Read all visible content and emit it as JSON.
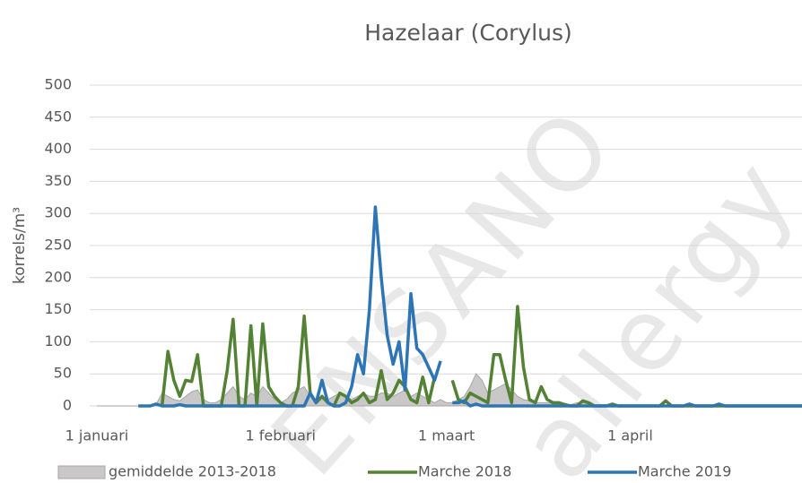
{
  "chart_data": {
    "type": "line",
    "title": "Hazelaar (Corylus)",
    "ylabel": "korrels/m³",
    "annotations": [
      "ENSANO",
      "allergy"
    ],
    "x": [
      0,
      1,
      2,
      3,
      4,
      5,
      6,
      7,
      8,
      9,
      10,
      11,
      12,
      13,
      14,
      15,
      16,
      17,
      18,
      19,
      20,
      21,
      22,
      23,
      24,
      25,
      26,
      27,
      28,
      29,
      30,
      31,
      32,
      33,
      34,
      35,
      36,
      37,
      38,
      39,
      40,
      41,
      42,
      43,
      44,
      45,
      46,
      47,
      48,
      49,
      50,
      51,
      52,
      53,
      54,
      55,
      56,
      57,
      58,
      59,
      60,
      61,
      62,
      63,
      64,
      65,
      66,
      67,
      68,
      69,
      70,
      71,
      72,
      73,
      74,
      75,
      76,
      77,
      78,
      79,
      80,
      81,
      82,
      83,
      84,
      85,
      86,
      87,
      88,
      89,
      90,
      91,
      92,
      93,
      94,
      95,
      96,
      97,
      98,
      99,
      100,
      101,
      102,
      103,
      104,
      105,
      106,
      107,
      108,
      109,
      110,
      111,
      112,
      113,
      114,
      115,
      116,
      117,
      118,
      119
    ],
    "xlim": [
      -1.2,
      119
    ],
    "xticks": [
      {
        "value": 0,
        "label": "1 januari"
      },
      {
        "value": 31,
        "label": "1 februari"
      },
      {
        "value": 59,
        "label": "1 maart"
      },
      {
        "value": 90,
        "label": "1 april"
      }
    ],
    "ylim": [
      0,
      500
    ],
    "yticks": [
      0,
      50,
      100,
      150,
      200,
      250,
      300,
      350,
      400,
      450,
      500
    ],
    "grid": true,
    "legend": "bottom",
    "series": [
      {
        "name": "gemiddelde 2013-2018",
        "kind": "area",
        "color": "#c9c7c7",
        "edge": "#a6a6a6",
        "values": [
          0,
          0,
          0,
          0,
          0,
          0,
          0,
          0,
          0,
          0,
          2,
          20,
          15,
          10,
          8,
          15,
          22,
          25,
          10,
          5,
          5,
          10,
          20,
          30,
          15,
          10,
          20,
          15,
          30,
          20,
          10,
          5,
          10,
          20,
          25,
          30,
          15,
          10,
          10,
          10,
          15,
          20,
          15,
          10,
          15,
          20,
          15,
          15,
          20,
          20,
          15,
          20,
          25,
          15,
          20,
          15,
          10,
          5,
          10,
          5,
          5,
          10,
          15,
          30,
          50,
          40,
          20,
          25,
          30,
          35,
          25,
          15,
          10,
          8,
          5,
          5,
          5,
          3,
          3,
          2,
          2,
          5,
          5,
          3,
          2,
          2,
          2,
          1,
          1,
          1,
          0,
          0,
          0,
          0,
          0,
          0,
          0,
          0,
          0,
          0,
          0,
          0,
          0,
          0,
          0,
          0,
          0,
          0,
          0,
          0,
          0,
          0,
          0,
          0,
          0,
          0,
          0,
          0,
          0,
          0
        ]
      },
      {
        "name": "Marche 2018",
        "kind": "line",
        "color": "#548235",
        "values": [
          null,
          null,
          null,
          null,
          null,
          null,
          null,
          null,
          null,
          null,
          null,
          0,
          85,
          40,
          15,
          40,
          38,
          80,
          0,
          0,
          0,
          0,
          55,
          135,
          0,
          0,
          125,
          0,
          128,
          30,
          15,
          5,
          0,
          0,
          30,
          140,
          20,
          5,
          15,
          5,
          0,
          20,
          15,
          5,
          10,
          20,
          5,
          10,
          55,
          10,
          20,
          40,
          30,
          10,
          5,
          45,
          5,
          45,
          null,
          null,
          40,
          10,
          5,
          20,
          15,
          10,
          5,
          80,
          80,
          40,
          5,
          155,
          60,
          10,
          5,
          30,
          10,
          5,
          5,
          2,
          0,
          0,
          8,
          5,
          0,
          0,
          0,
          3,
          0,
          0,
          0,
          0,
          0,
          0,
          0,
          0,
          8,
          0,
          0,
          0,
          0,
          0,
          0,
          0,
          0,
          0,
          0,
          0,
          0,
          0,
          0,
          0,
          0,
          0,
          0,
          0,
          0,
          0,
          0,
          0
        ]
      },
      {
        "name": "Marche 2019",
        "kind": "line",
        "color": "#2e75b6",
        "values": [
          null,
          null,
          null,
          null,
          null,
          null,
          null,
          0,
          0,
          0,
          3,
          0,
          0,
          0,
          2,
          0,
          0,
          0,
          0,
          0,
          0,
          0,
          0,
          0,
          0,
          0,
          0,
          0,
          0,
          0,
          0,
          0,
          0,
          0,
          0,
          0,
          20,
          5,
          40,
          5,
          0,
          0,
          5,
          30,
          80,
          50,
          150,
          310,
          200,
          110,
          65,
          100,
          25,
          175,
          90,
          80,
          60,
          40,
          70,
          null,
          5,
          5,
          8,
          0,
          3,
          0,
          0,
          0,
          0,
          0,
          0,
          0,
          0,
          0,
          0,
          0,
          0,
          0,
          0,
          0,
          0,
          0,
          0,
          0,
          0,
          0,
          0,
          0,
          0,
          0,
          0,
          0,
          0,
          0,
          0,
          0,
          0,
          0,
          0,
          0,
          3,
          0,
          0,
          0,
          0,
          3,
          0,
          0,
          0,
          0,
          0,
          0,
          0,
          0,
          0,
          0,
          0,
          0,
          0,
          0
        ]
      }
    ]
  }
}
